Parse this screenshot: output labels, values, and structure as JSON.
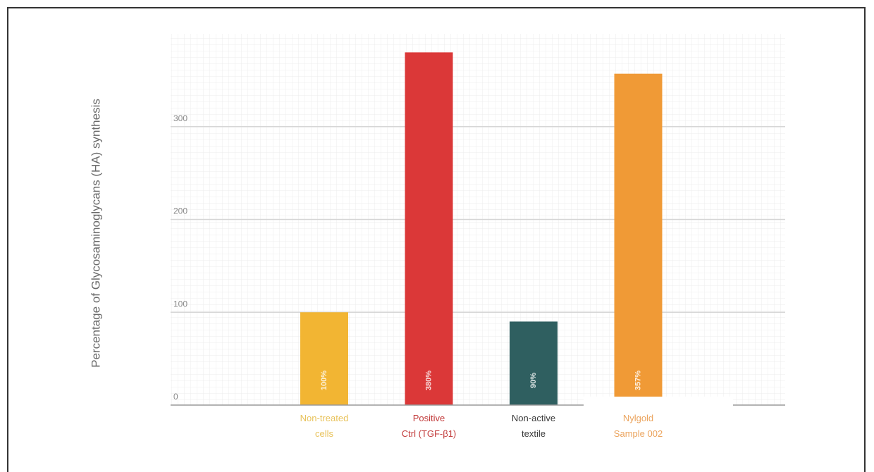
{
  "chart_data": {
    "type": "bar",
    "title": "",
    "xlabel": "",
    "ylabel": "Percentage of Glycosaminoglycans (HA) synthesis",
    "ylim": [
      0,
      400
    ],
    "yticks": [
      0,
      100,
      200,
      300
    ],
    "grid": true,
    "categories": [
      [
        "Non-treated",
        "cells"
      ],
      [
        "Positive",
        "Ctrl (TGF-β1)"
      ],
      [
        "Non-active",
        "textile"
      ],
      [
        "Nylgold",
        "Sample 002"
      ]
    ],
    "values": [
      100,
      380,
      90,
      357
    ],
    "data_labels": [
      "100%",
      "380%",
      "90%",
      "357%"
    ],
    "colors": [
      "#f2b533",
      "#db3838",
      "#2f5f60",
      "#f09a36"
    ],
    "label_colors": [
      "#e8c25a",
      "#c23a3a",
      "#3a3a3a",
      "#eba35c"
    ]
  }
}
